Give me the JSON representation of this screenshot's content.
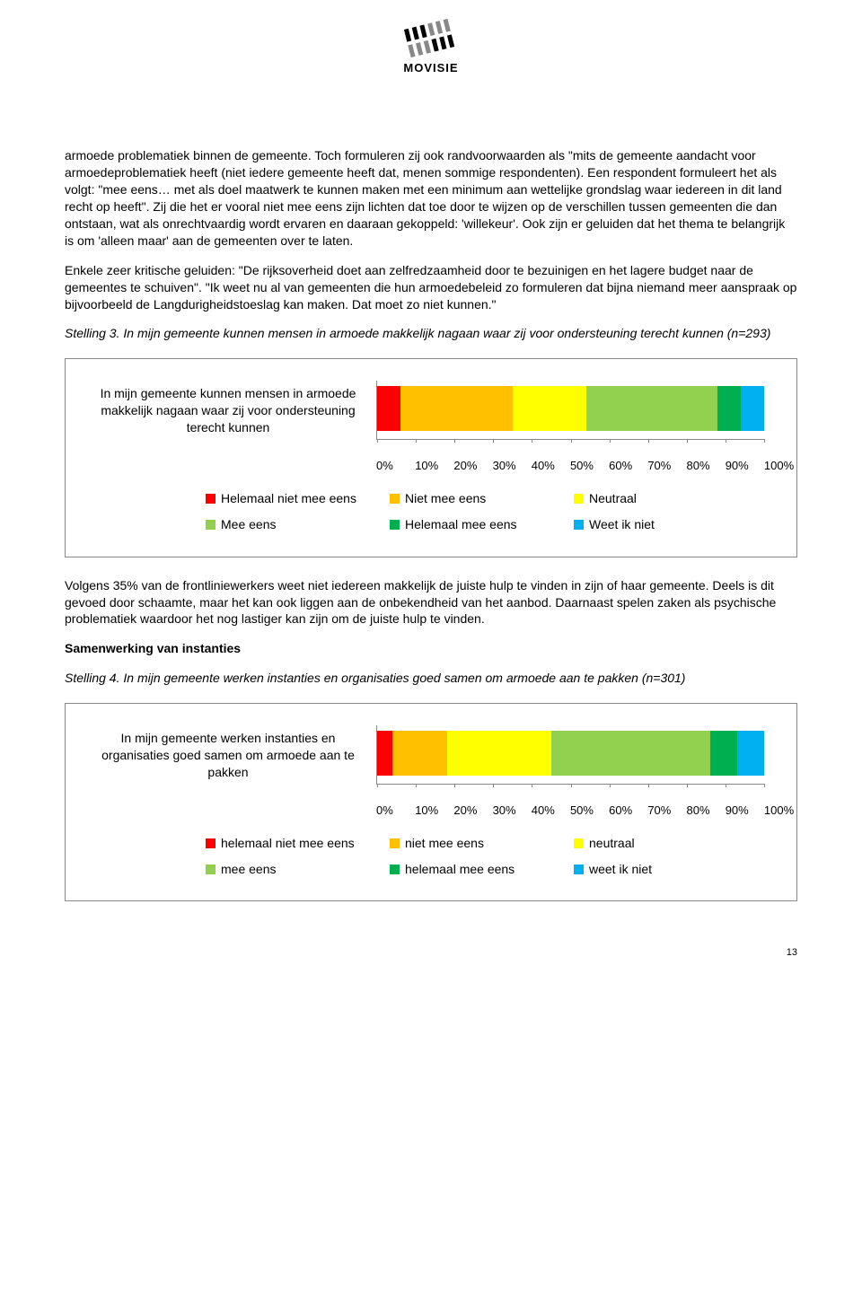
{
  "logo": {
    "text": "MOVISIE"
  },
  "paragraphs": {
    "p1": "armoede problematiek binnen de gemeente. Toch formuleren zij ook randvoorwaarden als \"mits de gemeente aandacht voor armoedeproblematiek heeft (niet iedere gemeente heeft dat, menen sommige respondenten). Een respondent formuleert het als volgt: \"mee eens… met als doel maatwerk te kunnen maken met een minimum aan wettelijke grondslag waar iedereen in dit land recht op heeft\". Zij die het er vooral niet mee eens zijn lichten dat toe door te wijzen op de verschillen tussen gemeenten die dan ontstaan, wat als onrechtvaardig wordt ervaren en daaraan gekoppeld: 'willekeur'. Ook zijn er geluiden dat het thema te belangrijk is om 'alleen maar' aan de gemeenten over te laten.",
    "p2": "Enkele zeer kritische geluiden: \"De rijksoverheid doet aan zelfredzaamheid door te bezuinigen en het lagere budget naar de gemeentes te schuiven\". \"Ik weet nu al van gemeenten die hun armoedebeleid zo formuleren dat bijna niemand meer aanspraak op bijvoorbeeld de Langdurigheidstoeslag kan maken. Dat moet zo niet kunnen.\"",
    "p3": "Volgens 35% van de frontliniewerkers weet niet iedereen makkelijk de juiste hulp te vinden in zijn of haar gemeente. Deels is dit gevoed door schaamte, maar het kan ook liggen aan de onbekendheid van het aanbod. Daarnaast spelen zaken als psychische problematiek waardoor het nog lastiger kan zijn om de juiste hulp te vinden."
  },
  "stelling3": {
    "heading": "Stelling 3. In mijn gemeente kunnen mensen in armoede makkelijk nagaan waar zij voor ondersteuning terecht kunnen (n=293)",
    "bar_label": "In mijn gemeente kunnen mensen in armoede makkelijk nagaan waar zij voor ondersteuning terecht kunnen",
    "segments": [
      {
        "value": 6,
        "color": "#ff0000"
      },
      {
        "value": 29,
        "color": "#ffc000"
      },
      {
        "value": 19,
        "color": "#ffff00"
      },
      {
        "value": 34,
        "color": "#92d050"
      },
      {
        "value": 6,
        "color": "#00b050"
      },
      {
        "value": 6,
        "color": "#00b0f0"
      }
    ],
    "axis": [
      "0%",
      "10%",
      "20%",
      "30%",
      "40%",
      "50%",
      "60%",
      "70%",
      "80%",
      "90%",
      "100%"
    ],
    "legend": [
      {
        "label": "Helemaal niet mee eens",
        "color": "#ff0000"
      },
      {
        "label": "Niet mee eens",
        "color": "#ffc000"
      },
      {
        "label": "Neutraal",
        "color": "#ffff00"
      },
      {
        "label": "Mee eens",
        "color": "#92d050"
      },
      {
        "label": "Helemaal mee eens",
        "color": "#00b050"
      },
      {
        "label": "Weet ik niet",
        "color": "#00b0f0"
      }
    ]
  },
  "samenwerking_heading": "Samenwerking van instanties",
  "stelling4": {
    "heading": "Stelling 4. In mijn gemeente werken instanties en organisaties goed samen om armoede aan te pakken (n=301)",
    "bar_label": "In mijn gemeente werken instanties en organisaties goed samen om armoede aan te pakken",
    "segments": [
      {
        "value": 4,
        "color": "#ff0000"
      },
      {
        "value": 14,
        "color": "#ffc000"
      },
      {
        "value": 27,
        "color": "#ffff00"
      },
      {
        "value": 41,
        "color": "#92d050"
      },
      {
        "value": 7,
        "color": "#00b050"
      },
      {
        "value": 7,
        "color": "#00b0f0"
      }
    ],
    "axis": [
      "0%",
      "10%",
      "20%",
      "30%",
      "40%",
      "50%",
      "60%",
      "70%",
      "80%",
      "90%",
      "100%"
    ],
    "legend": [
      {
        "label": "helemaal niet mee eens",
        "color": "#ff0000"
      },
      {
        "label": "niet mee eens",
        "color": "#ffc000"
      },
      {
        "label": "neutraal",
        "color": "#ffff00"
      },
      {
        "label": "mee eens",
        "color": "#92d050"
      },
      {
        "label": "helemaal mee eens",
        "color": "#00b050"
      },
      {
        "label": "weet ik niet",
        "color": "#00b0f0"
      }
    ]
  },
  "legend_col_widths": [
    205,
    205,
    140
  ],
  "page_number": "13"
}
